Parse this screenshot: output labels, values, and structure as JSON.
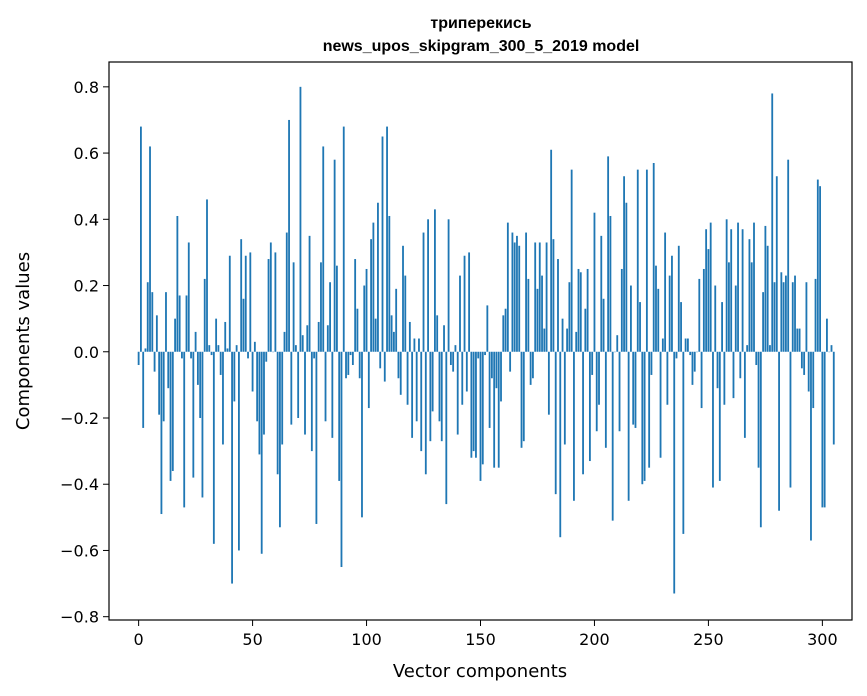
{
  "chart_data": {
    "type": "bar",
    "title_line1": "триперекись",
    "title_line2": "news_upos_skipgram_300_5_2019 model",
    "xlabel": "Vector components",
    "ylabel": "Components values",
    "xlim": [
      -13,
      313
    ],
    "ylim": [
      -0.81,
      0.875
    ],
    "xticks": [
      0,
      50,
      100,
      150,
      200,
      250,
      300
    ],
    "yticks": [
      -0.8,
      -0.6,
      -0.4,
      -0.2,
      0.0,
      0.2,
      0.4,
      0.6,
      0.8
    ],
    "ytick_labels": [
      "−0.8",
      "−0.6",
      "−0.4",
      "−0.2",
      "0.0",
      "0.2",
      "0.4",
      "0.6",
      "0.8"
    ],
    "bar_color": "#1f77b4",
    "grid": false,
    "values": [
      -0.04,
      0.68,
      -0.23,
      0.01,
      0.21,
      0.62,
      0.18,
      -0.06,
      0.11,
      -0.19,
      -0.49,
      -0.21,
      0.18,
      -0.11,
      -0.39,
      -0.36,
      0.1,
      0.41,
      0.17,
      -0.02,
      -0.47,
      0.17,
      0.33,
      -0.02,
      -0.38,
      0.06,
      -0.1,
      -0.2,
      -0.44,
      0.22,
      0.46,
      0.02,
      -0.01,
      -0.58,
      0.1,
      0.02,
      -0.07,
      -0.28,
      0.09,
      0.01,
      0.29,
      -0.7,
      -0.15,
      0.02,
      -0.6,
      0.34,
      0.16,
      0.29,
      -0.02,
      0.3,
      -0.12,
      0.03,
      -0.21,
      -0.31,
      -0.61,
      -0.25,
      -0.03,
      0.28,
      0.33,
      0.0,
      0.3,
      -0.37,
      -0.53,
      -0.28,
      0.06,
      0.36,
      0.7,
      -0.22,
      0.27,
      0.02,
      -0.2,
      0.8,
      0.05,
      -0.25,
      0.08,
      0.35,
      -0.3,
      -0.02,
      -0.52,
      0.09,
      0.27,
      0.62,
      -0.21,
      0.08,
      0.21,
      -0.26,
      0.58,
      0.26,
      -0.39,
      -0.65,
      0.68,
      -0.08,
      -0.07,
      -0.01,
      -0.04,
      0.28,
      0.13,
      -0.08,
      -0.5,
      0.2,
      0.25,
      -0.17,
      0.34,
      0.39,
      0.1,
      0.45,
      -0.05,
      0.65,
      -0.09,
      0.68,
      0.41,
      0.11,
      0.06,
      0.19,
      -0.08,
      -0.13,
      0.32,
      0.23,
      -0.16,
      0.09,
      -0.26,
      0.04,
      -0.21,
      0.04,
      -0.3,
      0.36,
      -0.37,
      0.4,
      -0.27,
      -0.18,
      0.43,
      0.11,
      -0.21,
      -0.27,
      0.08,
      -0.46,
      0.4,
      -0.04,
      -0.06,
      0.02,
      -0.25,
      0.23,
      -0.16,
      0.29,
      -0.12,
      0.3,
      -0.32,
      -0.3,
      -0.32,
      -0.02,
      -0.39,
      -0.34,
      -0.01,
      0.14,
      -0.23,
      -0.08,
      -0.35,
      -0.11,
      -0.35,
      -0.15,
      0.11,
      0.13,
      0.39,
      -0.06,
      0.36,
      0.33,
      0.35,
      0.32,
      -0.29,
      -0.27,
      0.36,
      0.22,
      -0.1,
      -0.08,
      0.33,
      0.19,
      0.33,
      0.23,
      0.07,
      0.33,
      -0.19,
      0.61,
      0.34,
      -0.43,
      0.28,
      -0.56,
      0.1,
      -0.28,
      0.07,
      0.21,
      0.55,
      -0.45,
      0.06,
      0.25,
      0.24,
      -0.37,
      0.13,
      0.25,
      -0.33,
      -0.07,
      0.42,
      -0.24,
      -0.16,
      0.35,
      0.16,
      -0.29,
      0.59,
      0.41,
      -0.51,
      0.0,
      0.05,
      -0.24,
      0.25,
      0.53,
      0.45,
      -0.45,
      0.2,
      -0.22,
      -0.23,
      0.55,
      0.15,
      -0.4,
      -0.39,
      0.55,
      -0.35,
      -0.07,
      0.57,
      0.26,
      0.19,
      -0.32,
      0.04,
      0.36,
      -0.16,
      0.23,
      0.29,
      -0.73,
      -0.02,
      0.32,
      0.15,
      -0.55,
      0.04,
      0.04,
      -0.01,
      -0.1,
      -0.06,
      0.0,
      0.22,
      -0.17,
      0.25,
      0.37,
      0.31,
      0.39,
      -0.41,
      0.2,
      -0.11,
      -0.39,
      0.15,
      -0.16,
      0.4,
      0.27,
      0.37,
      -0.14,
      0.2,
      0.39,
      -0.08,
      0.37,
      -0.26,
      0.02,
      0.34,
      0.27,
      0.39,
      -0.04,
      -0.35,
      -0.53,
      0.18,
      0.38,
      0.32,
      0.02,
      0.78,
      0.21,
      0.53,
      -0.48,
      0.24,
      0.21,
      0.23,
      0.58,
      -0.41,
      0.21,
      0.23,
      0.07,
      0.07,
      -0.05,
      -0.07,
      0.21,
      -0.12,
      -0.57,
      -0.17,
      0.22,
      0.52,
      0.5,
      -0.47,
      -0.47,
      0.1,
      0.0,
      0.02,
      -0.28
    ]
  }
}
